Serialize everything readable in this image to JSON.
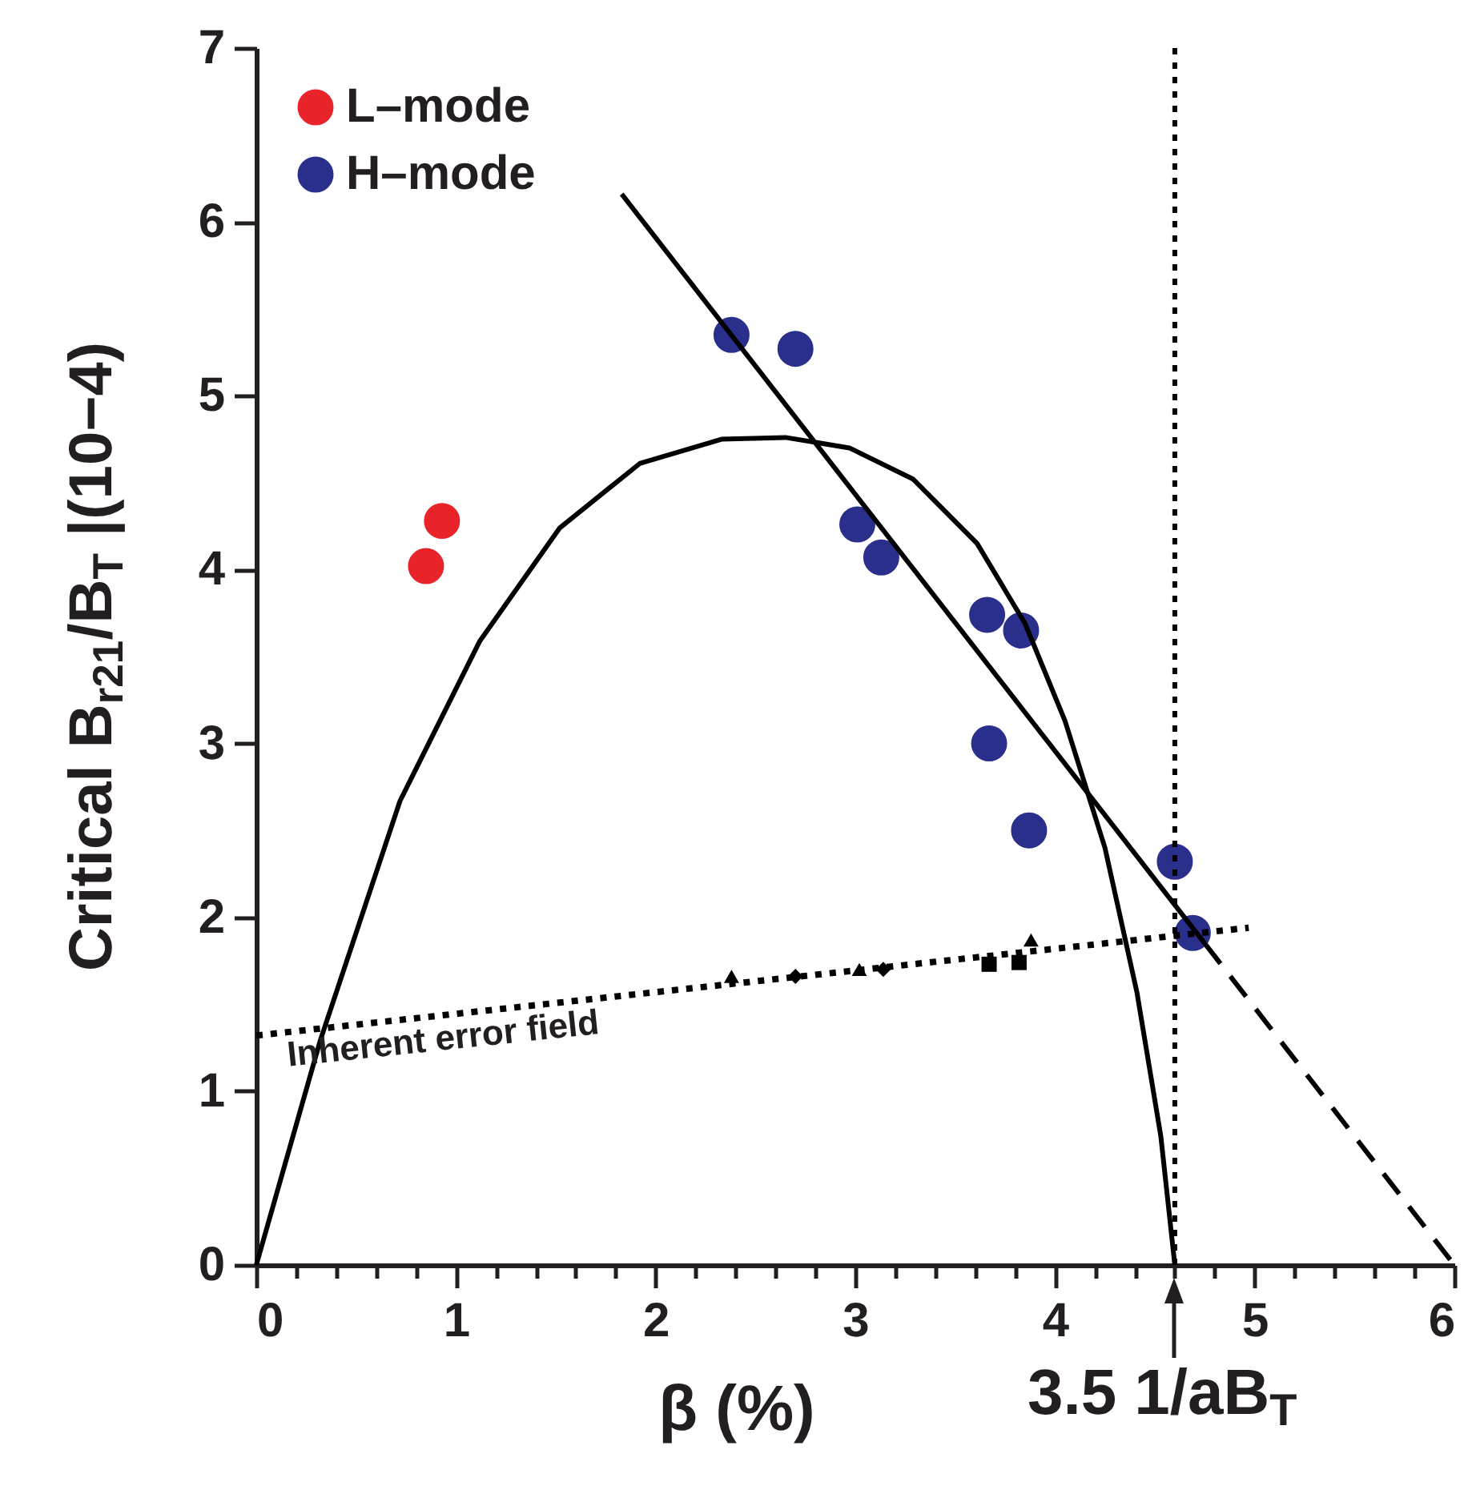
{
  "chart_data": {
    "type": "scatter",
    "xlabel": "β (%)",
    "ylabel": "Critical B$_{r21}$/B$_{T}$ |(10−4)",
    "xlim": [
      0,
      6
    ],
    "ylim": [
      0,
      7
    ],
    "xticks": [
      0,
      {
        "value": 0.2,
        "label": null
      },
      {
        "value": 0.4,
        "label": null
      },
      {
        "value": 0.6,
        "label": null
      },
      {
        "value": 0.8,
        "label": null
      },
      1,
      {
        "value": 1.2,
        "label": null
      },
      {
        "value": 1.4,
        "label": null
      },
      {
        "value": 1.6,
        "label": null
      },
      {
        "value": 1.8,
        "label": null
      },
      2,
      {
        "value": 2.2,
        "label": null
      },
      {
        "value": 2.4,
        "label": null
      },
      {
        "value": 2.6,
        "label": null
      },
      {
        "value": 2.8,
        "label": null
      },
      3,
      {
        "value": 3.2,
        "label": null
      },
      {
        "value": 3.4,
        "label": null
      },
      {
        "value": 3.6,
        "label": null
      },
      {
        "value": 3.8,
        "label": null
      },
      4,
      {
        "value": 4.2,
        "label": null
      },
      {
        "value": 4.4,
        "label": null
      },
      {
        "value": 4.6,
        "label": null
      },
      {
        "value": 4.8,
        "label": null
      },
      5,
      {
        "value": 5.2,
        "label": null
      },
      {
        "value": 5.4,
        "label": null
      },
      {
        "value": 5.6,
        "label": null
      },
      {
        "value": 5.8,
        "label": null
      },
      6
    ],
    "yticks": [
      0,
      1,
      2,
      3,
      4,
      5,
      6,
      7
    ],
    "grid": false,
    "legend": "top left",
    "series": [
      {
        "name": "L–mode",
        "color": "#e8242a",
        "marker": "circle",
        "x": [
          0.85,
          0.93
        ],
        "values": [
          4.02,
          4.28
        ]
      },
      {
        "name": "H–mode",
        "color": "#2b2f8c",
        "marker": "circle",
        "x": [
          2.38,
          2.7,
          3.01,
          3.13,
          3.66,
          3.83,
          3.67,
          3.87,
          4.6,
          4.69
        ],
        "values": [
          5.35,
          5.27,
          4.26,
          4.07,
          3.74,
          3.65,
          3.0,
          2.5,
          2.32,
          1.91
        ]
      },
      {
        "type": "line",
        "color": "#000000",
        "line_style": "solid",
        "x": [
          1.83,
          4.75
        ],
        "values": [
          6.16,
          1.85
        ]
      },
      {
        "type": "line",
        "color": "#000000",
        "line_style": "dashed",
        "x": [
          4.75,
          6.0
        ],
        "values": [
          1.85,
          0
        ]
      },
      {
        "type": "line",
        "color": "#000000",
        "line_style": "solid",
        "x": [
          0,
          0.32,
          0.72,
          1.12,
          1.52,
          1.92,
          2.33,
          2.65,
          2.97,
          3.29,
          3.61,
          3.85,
          4.05,
          4.25,
          4.41,
          4.53,
          4.6
        ],
        "values": [
          0,
          1.29,
          2.67,
          3.59,
          4.24,
          4.61,
          4.75,
          4.76,
          4.7,
          4.52,
          4.15,
          3.69,
          3.13,
          2.4,
          1.57,
          0.74,
          0
        ]
      },
      {
        "type": "line",
        "color": "#000000",
        "line_style": "dotted",
        "x": [
          0,
          4.97
        ],
        "values": [
          1.32,
          1.94
        ]
      },
      {
        "color": "#000000",
        "marker": "triangle",
        "x": [
          2.38,
          3.02
        ],
        "values": [
          1.66,
          1.7
        ]
      },
      {
        "color": "#000000",
        "marker": "diamond",
        "x": [
          2.7,
          3.14
        ],
        "values": [
          1.66,
          1.7
        ]
      },
      {
        "color": "#000000",
        "marker": "square",
        "x": [
          3.67,
          3.82
        ],
        "values": [
          1.73,
          1.74
        ]
      },
      {
        "color": "#000000",
        "marker": "triangle",
        "x": [
          3.88
        ],
        "values": [
          1.87
        ]
      }
    ],
    "ref_lines": [
      {
        "axis": "x",
        "value": 4.6,
        "label": "3.5 1/aB$_{T}$",
        "color": "#000000",
        "line_style": "dotted"
      }
    ],
    "annotations": [
      "Inherent error field"
    ]
  }
}
